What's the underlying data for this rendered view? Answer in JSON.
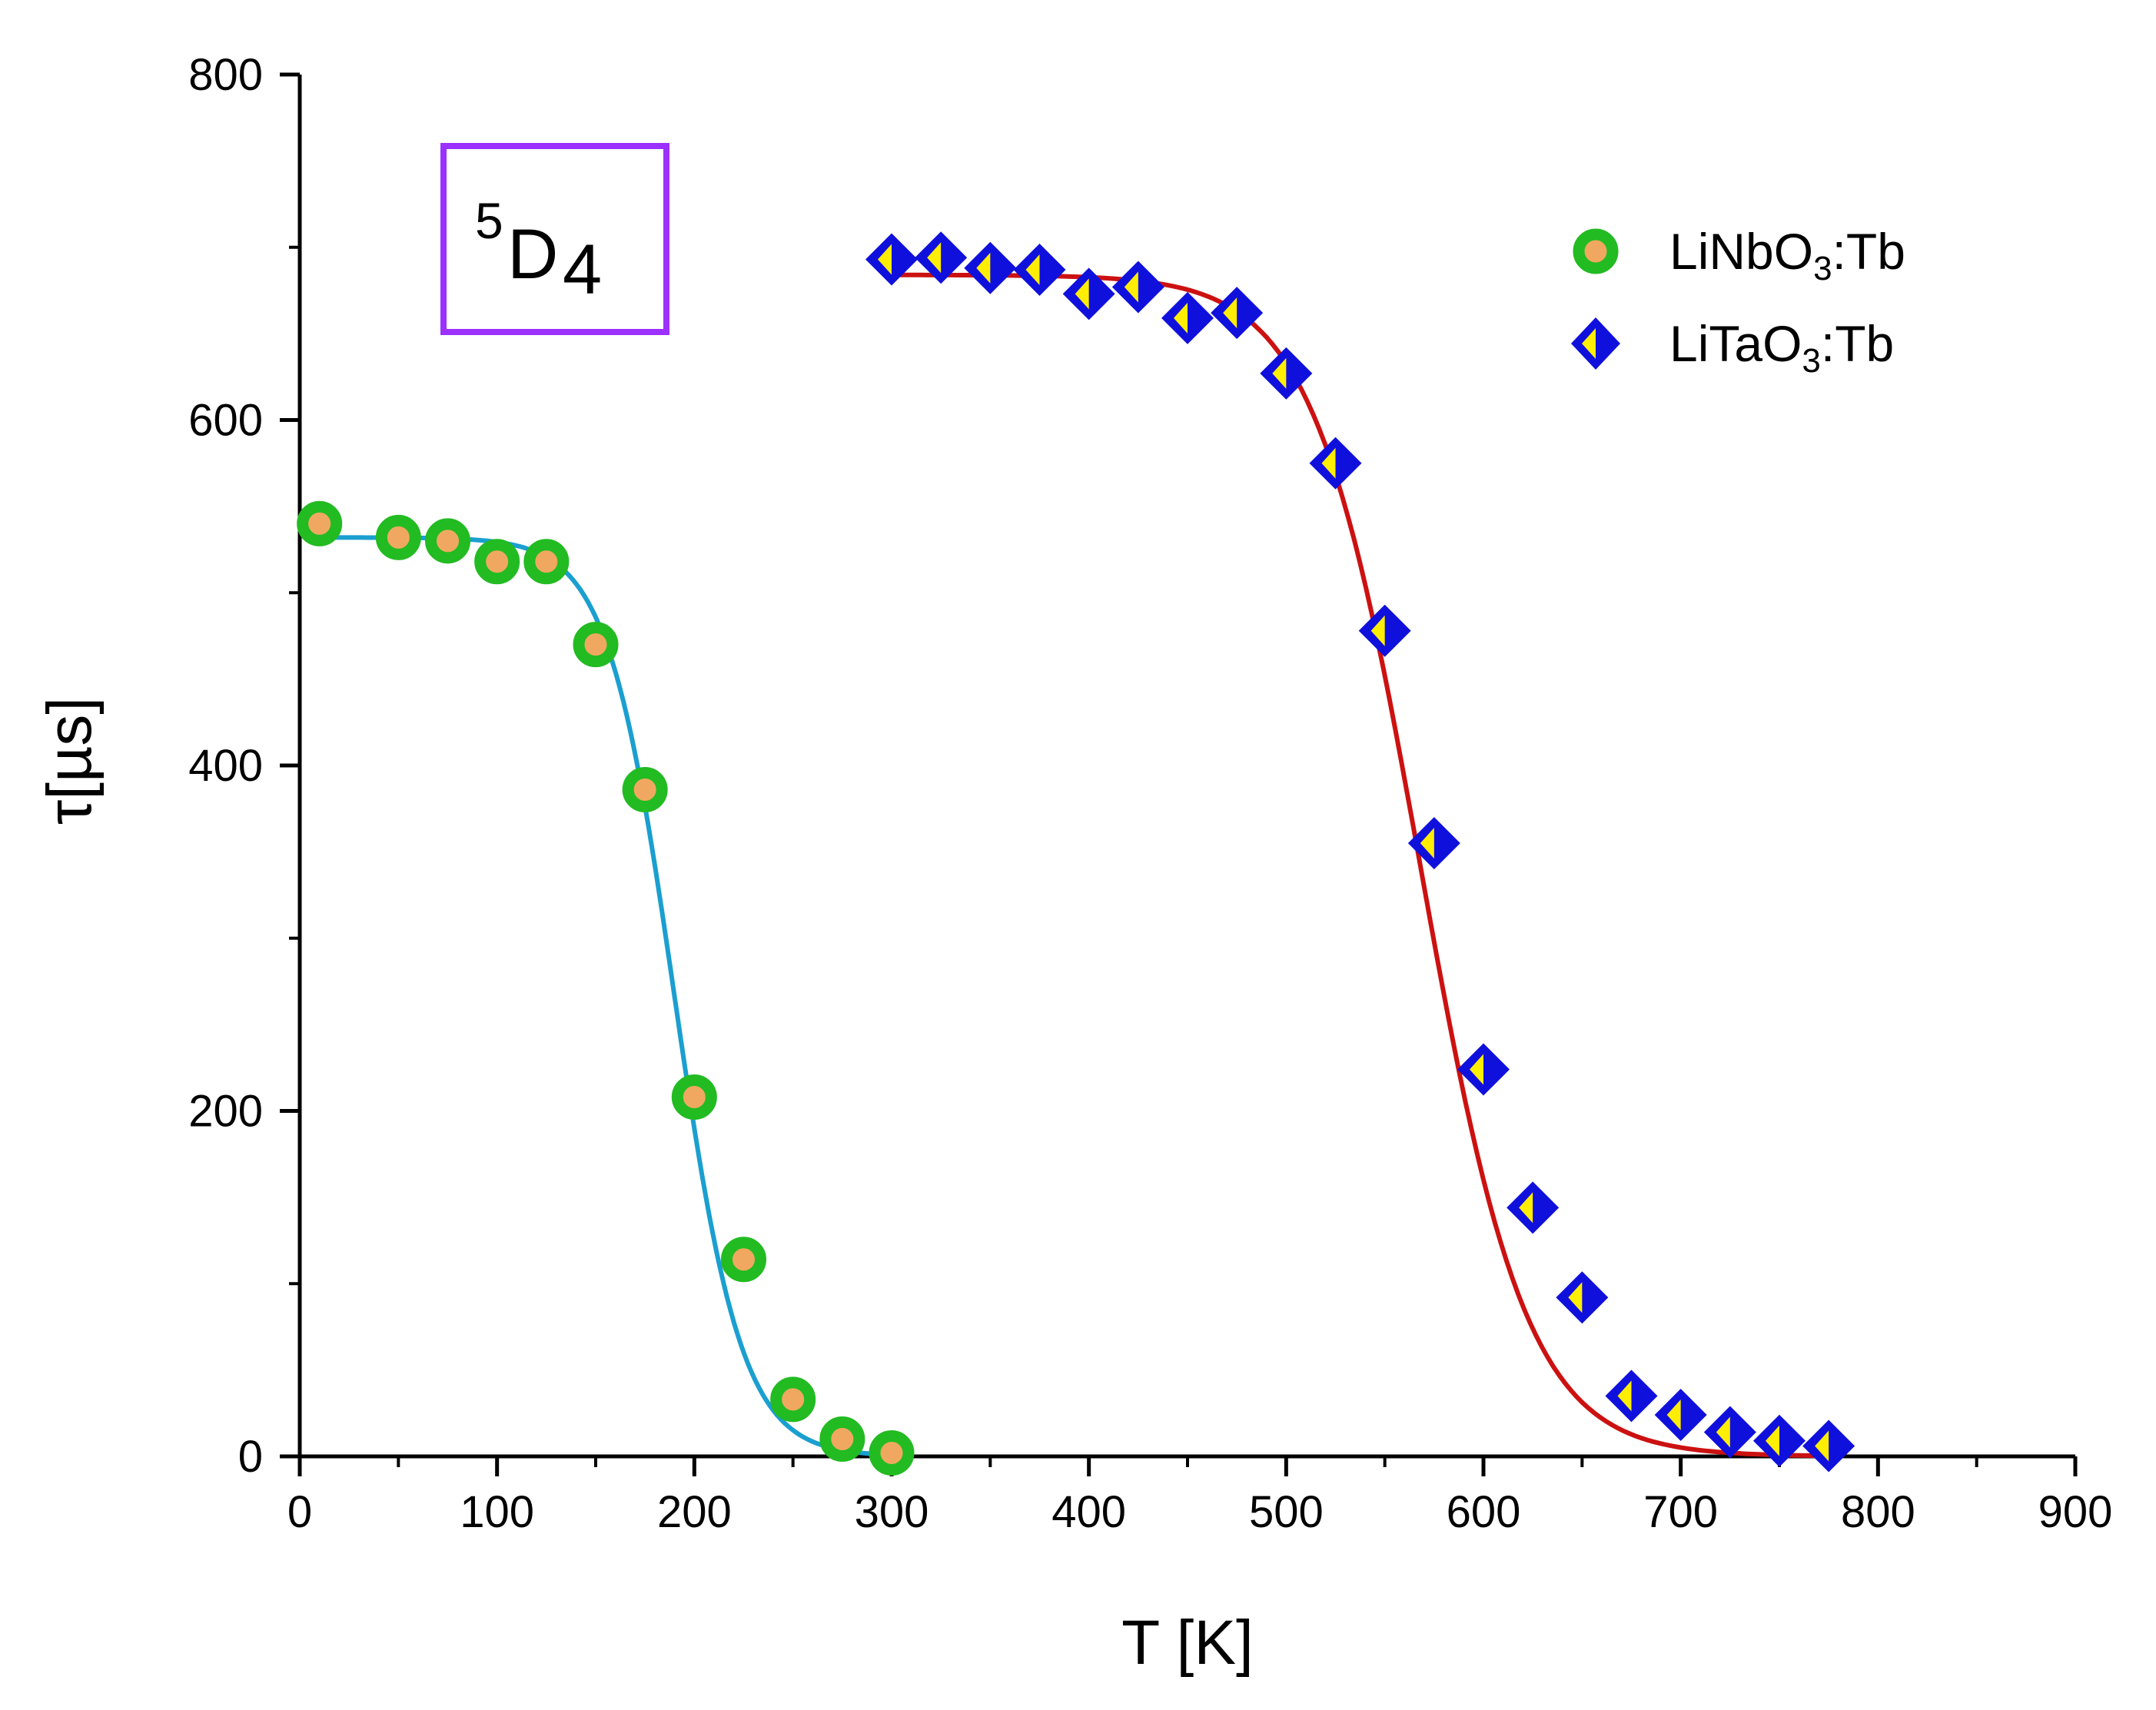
{
  "chart_data": {
    "type": "scatter",
    "title": "",
    "xlabel": "T [K]",
    "ylabel": "τ[µs]",
    "xlim": [
      0,
      900
    ],
    "ylim": [
      0,
      800
    ],
    "xticks": [
      0,
      100,
      200,
      300,
      400,
      500,
      600,
      700,
      800,
      900
    ],
    "yticks": [
      0,
      200,
      400,
      600,
      800
    ],
    "x_tick_labels": [
      "0",
      "100",
      "200",
      "300",
      "400",
      "500",
      "600",
      "700",
      "800",
      "900"
    ],
    "y_tick_labels": [
      "0",
      "200",
      "400",
      "600",
      "800"
    ],
    "legend_position": "top-right",
    "annotation": {
      "main": "D",
      "sup": "5",
      "sub": "4",
      "box_color": "#9b30ff"
    },
    "series": [
      {
        "name": "LiNbO3:Tb",
        "label_parts": {
          "pre": "LiNbO",
          "sub": "3",
          "post": ":Tb"
        },
        "marker": "circle",
        "marker_outline": "#22bb22",
        "marker_fill": "#f0a860",
        "line_color": "#1a9fd0",
        "x": [
          10,
          50,
          75,
          100,
          125,
          150,
          175,
          200,
          225,
          250,
          275,
          300
        ],
        "y": [
          540,
          532,
          530,
          518,
          518,
          470,
          386,
          208,
          114,
          33,
          10,
          2
        ],
        "fit": {
          "A": 532,
          "Tc": 190,
          "w": 17,
          "T0": 10,
          "T1": 300
        }
      },
      {
        "name": "LiTaO3:Tb",
        "label_parts": {
          "pre": "LiTaO",
          "sub": "3",
          "post": ":Tb"
        },
        "marker": "diamond",
        "marker_outline": "#1010dd",
        "marker_fill": "#ffee00",
        "line_color": "#cc1111",
        "x": [
          300,
          325,
          350,
          375,
          400,
          425,
          450,
          475,
          500,
          525,
          550,
          575,
          600,
          625,
          650,
          675,
          700,
          725,
          750,
          775
        ],
        "y": [
          693,
          694,
          688,
          687,
          673,
          677,
          659,
          662,
          627,
          575,
          478,
          355,
          224,
          144,
          92,
          35,
          24,
          14,
          9,
          6
        ],
        "fit": {
          "A": 684,
          "Tc": 568,
          "w": 27,
          "T0": 300,
          "T1": 775
        }
      }
    ]
  }
}
